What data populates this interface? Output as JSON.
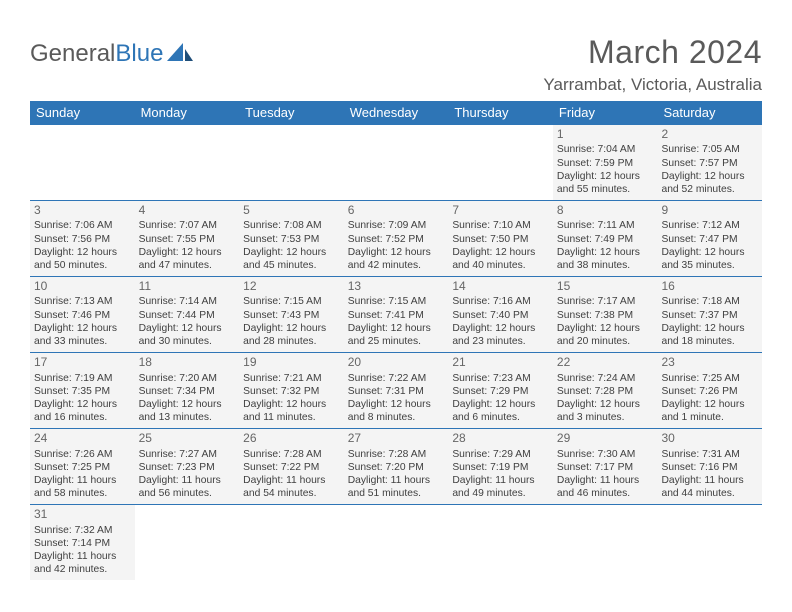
{
  "logo": {
    "text1": "General",
    "text2": "Blue"
  },
  "title": "March 2024",
  "location": "Yarrambat, Victoria, Australia",
  "colors": {
    "header_bar": "#2e75b6",
    "header_text": "#ffffff",
    "cell_bg": "#f4f4f4",
    "empty_bg": "#ffffff",
    "divider": "#2e75b6",
    "body_text": "#404040",
    "title_text": "#5a5a5a"
  },
  "weekdays": [
    "Sunday",
    "Monday",
    "Tuesday",
    "Wednesday",
    "Thursday",
    "Friday",
    "Saturday"
  ],
  "weeks": [
    [
      null,
      null,
      null,
      null,
      null,
      {
        "d": "1",
        "sr": "Sunrise: 7:04 AM",
        "ss": "Sunset: 7:59 PM",
        "dl1": "Daylight: 12 hours",
        "dl2": "and 55 minutes."
      },
      {
        "d": "2",
        "sr": "Sunrise: 7:05 AM",
        "ss": "Sunset: 7:57 PM",
        "dl1": "Daylight: 12 hours",
        "dl2": "and 52 minutes."
      }
    ],
    [
      {
        "d": "3",
        "sr": "Sunrise: 7:06 AM",
        "ss": "Sunset: 7:56 PM",
        "dl1": "Daylight: 12 hours",
        "dl2": "and 50 minutes."
      },
      {
        "d": "4",
        "sr": "Sunrise: 7:07 AM",
        "ss": "Sunset: 7:55 PM",
        "dl1": "Daylight: 12 hours",
        "dl2": "and 47 minutes."
      },
      {
        "d": "5",
        "sr": "Sunrise: 7:08 AM",
        "ss": "Sunset: 7:53 PM",
        "dl1": "Daylight: 12 hours",
        "dl2": "and 45 minutes."
      },
      {
        "d": "6",
        "sr": "Sunrise: 7:09 AM",
        "ss": "Sunset: 7:52 PM",
        "dl1": "Daylight: 12 hours",
        "dl2": "and 42 minutes."
      },
      {
        "d": "7",
        "sr": "Sunrise: 7:10 AM",
        "ss": "Sunset: 7:50 PM",
        "dl1": "Daylight: 12 hours",
        "dl2": "and 40 minutes."
      },
      {
        "d": "8",
        "sr": "Sunrise: 7:11 AM",
        "ss": "Sunset: 7:49 PM",
        "dl1": "Daylight: 12 hours",
        "dl2": "and 38 minutes."
      },
      {
        "d": "9",
        "sr": "Sunrise: 7:12 AM",
        "ss": "Sunset: 7:47 PM",
        "dl1": "Daylight: 12 hours",
        "dl2": "and 35 minutes."
      }
    ],
    [
      {
        "d": "10",
        "sr": "Sunrise: 7:13 AM",
        "ss": "Sunset: 7:46 PM",
        "dl1": "Daylight: 12 hours",
        "dl2": "and 33 minutes."
      },
      {
        "d": "11",
        "sr": "Sunrise: 7:14 AM",
        "ss": "Sunset: 7:44 PM",
        "dl1": "Daylight: 12 hours",
        "dl2": "and 30 minutes."
      },
      {
        "d": "12",
        "sr": "Sunrise: 7:15 AM",
        "ss": "Sunset: 7:43 PM",
        "dl1": "Daylight: 12 hours",
        "dl2": "and 28 minutes."
      },
      {
        "d": "13",
        "sr": "Sunrise: 7:15 AM",
        "ss": "Sunset: 7:41 PM",
        "dl1": "Daylight: 12 hours",
        "dl2": "and 25 minutes."
      },
      {
        "d": "14",
        "sr": "Sunrise: 7:16 AM",
        "ss": "Sunset: 7:40 PM",
        "dl1": "Daylight: 12 hours",
        "dl2": "and 23 minutes."
      },
      {
        "d": "15",
        "sr": "Sunrise: 7:17 AM",
        "ss": "Sunset: 7:38 PM",
        "dl1": "Daylight: 12 hours",
        "dl2": "and 20 minutes."
      },
      {
        "d": "16",
        "sr": "Sunrise: 7:18 AM",
        "ss": "Sunset: 7:37 PM",
        "dl1": "Daylight: 12 hours",
        "dl2": "and 18 minutes."
      }
    ],
    [
      {
        "d": "17",
        "sr": "Sunrise: 7:19 AM",
        "ss": "Sunset: 7:35 PM",
        "dl1": "Daylight: 12 hours",
        "dl2": "and 16 minutes."
      },
      {
        "d": "18",
        "sr": "Sunrise: 7:20 AM",
        "ss": "Sunset: 7:34 PM",
        "dl1": "Daylight: 12 hours",
        "dl2": "and 13 minutes."
      },
      {
        "d": "19",
        "sr": "Sunrise: 7:21 AM",
        "ss": "Sunset: 7:32 PM",
        "dl1": "Daylight: 12 hours",
        "dl2": "and 11 minutes."
      },
      {
        "d": "20",
        "sr": "Sunrise: 7:22 AM",
        "ss": "Sunset: 7:31 PM",
        "dl1": "Daylight: 12 hours",
        "dl2": "and 8 minutes."
      },
      {
        "d": "21",
        "sr": "Sunrise: 7:23 AM",
        "ss": "Sunset: 7:29 PM",
        "dl1": "Daylight: 12 hours",
        "dl2": "and 6 minutes."
      },
      {
        "d": "22",
        "sr": "Sunrise: 7:24 AM",
        "ss": "Sunset: 7:28 PM",
        "dl1": "Daylight: 12 hours",
        "dl2": "and 3 minutes."
      },
      {
        "d": "23",
        "sr": "Sunrise: 7:25 AM",
        "ss": "Sunset: 7:26 PM",
        "dl1": "Daylight: 12 hours",
        "dl2": "and 1 minute."
      }
    ],
    [
      {
        "d": "24",
        "sr": "Sunrise: 7:26 AM",
        "ss": "Sunset: 7:25 PM",
        "dl1": "Daylight: 11 hours",
        "dl2": "and 58 minutes."
      },
      {
        "d": "25",
        "sr": "Sunrise: 7:27 AM",
        "ss": "Sunset: 7:23 PM",
        "dl1": "Daylight: 11 hours",
        "dl2": "and 56 minutes."
      },
      {
        "d": "26",
        "sr": "Sunrise: 7:28 AM",
        "ss": "Sunset: 7:22 PM",
        "dl1": "Daylight: 11 hours",
        "dl2": "and 54 minutes."
      },
      {
        "d": "27",
        "sr": "Sunrise: 7:28 AM",
        "ss": "Sunset: 7:20 PM",
        "dl1": "Daylight: 11 hours",
        "dl2": "and 51 minutes."
      },
      {
        "d": "28",
        "sr": "Sunrise: 7:29 AM",
        "ss": "Sunset: 7:19 PM",
        "dl1": "Daylight: 11 hours",
        "dl2": "and 49 minutes."
      },
      {
        "d": "29",
        "sr": "Sunrise: 7:30 AM",
        "ss": "Sunset: 7:17 PM",
        "dl1": "Daylight: 11 hours",
        "dl2": "and 46 minutes."
      },
      {
        "d": "30",
        "sr": "Sunrise: 7:31 AM",
        "ss": "Sunset: 7:16 PM",
        "dl1": "Daylight: 11 hours",
        "dl2": "and 44 minutes."
      }
    ],
    [
      {
        "d": "31",
        "sr": "Sunrise: 7:32 AM",
        "ss": "Sunset: 7:14 PM",
        "dl1": "Daylight: 11 hours",
        "dl2": "and 42 minutes."
      },
      null,
      null,
      null,
      null,
      null,
      null
    ]
  ]
}
